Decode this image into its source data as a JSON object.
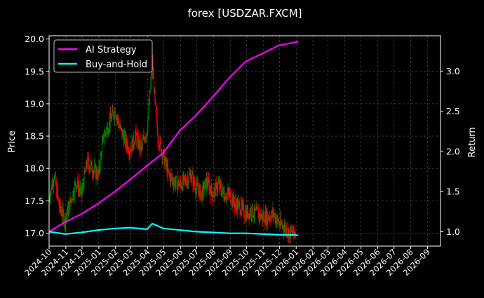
{
  "chart_data": {
    "type": "line",
    "title": "forex [USDZAR.FXCM]",
    "ylabel_left": "Price",
    "ylabel_right": "Return",
    "xlabel": "",
    "ylim_left": [
      16.8,
      20.05
    ],
    "ylim_right": [
      0.82,
      3.44
    ],
    "left_ticks": [
      "17.0",
      "17.5",
      "18.0",
      "18.5",
      "19.0",
      "19.5",
      "20.0"
    ],
    "right_ticks": [
      "1.0",
      "1.5",
      "2.0",
      "2.5",
      "3.0"
    ],
    "x_ticks": [
      "2024-10",
      "2024-11",
      "2024-12",
      "2025-01",
      "2025-02",
      "2025-03",
      "2025-04",
      "2025-05",
      "2025-06",
      "2025-07",
      "2025-08",
      "2025-09",
      "2025-10",
      "2025-11",
      "2025-12",
      "2026-01",
      "2026-02",
      "2026-03",
      "2026-04",
      "2026-05",
      "2026-06",
      "2026-07",
      "2026-08",
      "2026-09"
    ],
    "xlim": [
      "2024-10-01",
      "2026-09-25"
    ],
    "grid": true,
    "legend_position": "top-left",
    "candle_up_color": "#008000",
    "candle_down_color": "#ff0000",
    "price_series": {
      "name": "USDZAR",
      "x": [
        "2024-10-01",
        "2024-10-10",
        "2024-10-20",
        "2024-10-31",
        "2024-11-10",
        "2024-11-20",
        "2024-11-30",
        "2024-12-10",
        "2024-12-20",
        "2024-12-31",
        "2025-01-10",
        "2025-01-20",
        "2025-01-31",
        "2025-02-10",
        "2025-02-20",
        "2025-02-28",
        "2025-03-10",
        "2025-03-20",
        "2025-03-31",
        "2025-04-05",
        "2025-04-10",
        "2025-04-15",
        "2025-04-20",
        "2025-04-30",
        "2025-05-10",
        "2025-05-20",
        "2025-05-31",
        "2025-06-10",
        "2025-06-20",
        "2025-06-30",
        "2025-07-10",
        "2025-07-20",
        "2025-07-31",
        "2025-08-10",
        "2025-08-20",
        "2025-08-31",
        "2025-09-10",
        "2025-09-20",
        "2025-09-30",
        "2025-10-10",
        "2025-10-20",
        "2025-10-31",
        "2025-11-10",
        "2025-11-20",
        "2025-11-30",
        "2025-12-10",
        "2025-12-20",
        "2025-12-31"
      ],
      "close": [
        17.55,
        17.9,
        17.4,
        17.2,
        17.5,
        17.8,
        17.6,
        18.1,
        18.0,
        17.9,
        18.5,
        18.7,
        18.9,
        18.6,
        18.4,
        18.3,
        18.5,
        18.3,
        18.6,
        19.1,
        19.6,
        19.0,
        18.5,
        18.2,
        17.9,
        17.8,
        17.75,
        17.8,
        17.9,
        17.7,
        17.6,
        17.8,
        17.6,
        17.75,
        17.6,
        17.6,
        17.45,
        17.4,
        17.3,
        17.35,
        17.3,
        17.25,
        17.25,
        17.3,
        17.15,
        17.1,
        17.0,
        17.0
      ]
    },
    "series": [
      {
        "name": "AI Strategy",
        "color": "#ff00ff",
        "x": [
          "2024-10-01",
          "2024-10-31",
          "2024-11-30",
          "2024-12-31",
          "2025-01-31",
          "2025-02-28",
          "2025-03-31",
          "2025-04-30",
          "2025-05-31",
          "2025-06-30",
          "2025-07-31",
          "2025-08-31",
          "2025-09-30",
          "2025-10-31",
          "2025-11-30",
          "2025-12-31",
          "2026-01-05"
        ],
        "values": [
          1.0,
          1.12,
          1.22,
          1.35,
          1.5,
          1.65,
          1.82,
          1.98,
          2.26,
          2.45,
          2.68,
          2.92,
          3.12,
          3.22,
          3.32,
          3.36,
          3.37
        ]
      },
      {
        "name": "Buy-and-Hold",
        "color": "#00ffff",
        "x": [
          "2024-10-01",
          "2024-10-31",
          "2024-11-30",
          "2024-12-31",
          "2025-01-31",
          "2025-02-28",
          "2025-03-31",
          "2025-04-10",
          "2025-04-30",
          "2025-05-31",
          "2025-06-30",
          "2025-07-31",
          "2025-08-31",
          "2025-09-30",
          "2025-10-31",
          "2025-11-30",
          "2025-12-31",
          "2026-01-05"
        ],
        "values": [
          1.0,
          0.97,
          0.99,
          1.02,
          1.04,
          1.05,
          1.03,
          1.1,
          1.04,
          1.02,
          1.0,
          0.99,
          0.98,
          0.98,
          0.97,
          0.96,
          0.96,
          0.95
        ]
      }
    ]
  }
}
